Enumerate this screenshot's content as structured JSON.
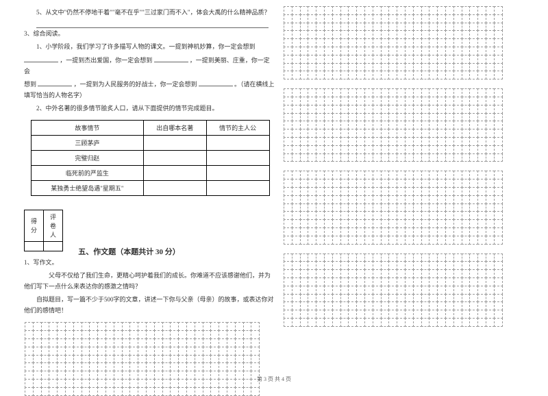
{
  "q5": {
    "text_a": "5、从文中\"仍然不停地干着\"\"毫不在乎\"\"三过家门而不入\"，体会大禹的什么精神品质？"
  },
  "q3": {
    "title": "3、综合阅读。",
    "sub1_a": "1、小学阶段，我们学习了许多描写人物的课文。一提到神机妙算，你一定会想到",
    "sub1_b": "，一提到杰出爱国，你一定会想到",
    "sub1_c": "，一提到美丽、庄重，你一定会",
    "sub1_d": "想到",
    "sub1_e": "，一提到为人民服务的好战士，你一定会想到",
    "sub1_f": "。（请在横线上填写恰当的人物名字）",
    "sub2": "2、中外名著的很多情节脍炙人口，请从下面提供的情节完成题目。"
  },
  "table": {
    "headers": [
      "故事情节",
      "出自哪本名著",
      "情节的主人公"
    ],
    "rows": [
      [
        "三顾茅庐",
        "",
        ""
      ],
      [
        "完璧归赵",
        "",
        ""
      ],
      [
        "临死前的严监生",
        "",
        ""
      ],
      [
        "某独勇士绝望岛遇\"星期五\"",
        "",
        ""
      ]
    ]
  },
  "score_labels": {
    "score": "得分",
    "grader": "评卷人"
  },
  "section5": {
    "title": "五、作文题（本题共计 30 分）",
    "q1": "1、写作文。",
    "para1": "父母不仅给了我们生命，更精心呵护着我们的成长。你难道不应该感谢他们，并为他们写下一点什么来表达你的感激之情吗？",
    "para2": "自拟题目，写一篇不少于500字的文章，讲述一下你与父亲（母亲）的故事，或表达你对他们的感情吧！"
  },
  "footer": "第 3 页  共 4 页",
  "grid": {
    "right_grids": [
      {
        "rows": 9,
        "cols": 27
      },
      {
        "rows": 9,
        "cols": 27
      },
      {
        "rows": 9,
        "cols": 27
      },
      {
        "rows": 9,
        "cols": 27
      }
    ],
    "left_grid": {
      "rows": 9,
      "cols": 29
    }
  }
}
